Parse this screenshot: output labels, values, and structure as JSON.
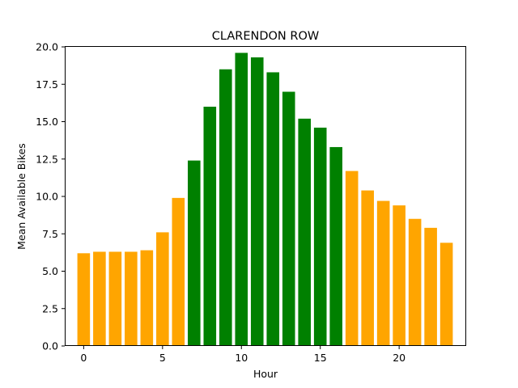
{
  "chart_data": {
    "type": "bar",
    "title": "CLARENDON ROW",
    "xlabel": "Hour",
    "ylabel": "Mean Available Bikes",
    "x": [
      0,
      1,
      2,
      3,
      4,
      5,
      6,
      7,
      8,
      9,
      10,
      11,
      12,
      13,
      14,
      15,
      16,
      17,
      18,
      19,
      20,
      21,
      22,
      23
    ],
    "values": [
      6.2,
      6.3,
      6.3,
      6.3,
      6.4,
      7.6,
      9.9,
      12.4,
      16.0,
      18.5,
      19.6,
      19.3,
      18.3,
      17.0,
      15.2,
      14.6,
      13.3,
      11.7,
      10.4,
      9.7,
      9.4,
      8.5,
      7.9,
      6.9
    ],
    "colors": [
      "#ffa500",
      "#ffa500",
      "#ffa500",
      "#ffa500",
      "#ffa500",
      "#ffa500",
      "#ffa500",
      "#008000",
      "#008000",
      "#008000",
      "#008000",
      "#008000",
      "#008000",
      "#008000",
      "#008000",
      "#008000",
      "#008000",
      "#ffa500",
      "#ffa500",
      "#ffa500",
      "#ffa500",
      "#ffa500",
      "#ffa500",
      "#ffa500"
    ],
    "xlim": [
      -1.2,
      24.2
    ],
    "ylim": [
      0,
      20.0
    ],
    "xticks": [
      0,
      5,
      10,
      15,
      20
    ],
    "xtick_labels": [
      "0",
      "5",
      "10",
      "15",
      "20"
    ],
    "yticks": [
      0,
      2.5,
      5,
      7.5,
      10,
      12.5,
      15,
      17.5,
      20
    ],
    "ytick_labels": [
      "0.0",
      "2.5",
      "5.0",
      "7.5",
      "10.0",
      "12.5",
      "15.0",
      "17.5",
      "20.0"
    ],
    "bar_width": 0.8,
    "grid": false,
    "legend": "none"
  }
}
